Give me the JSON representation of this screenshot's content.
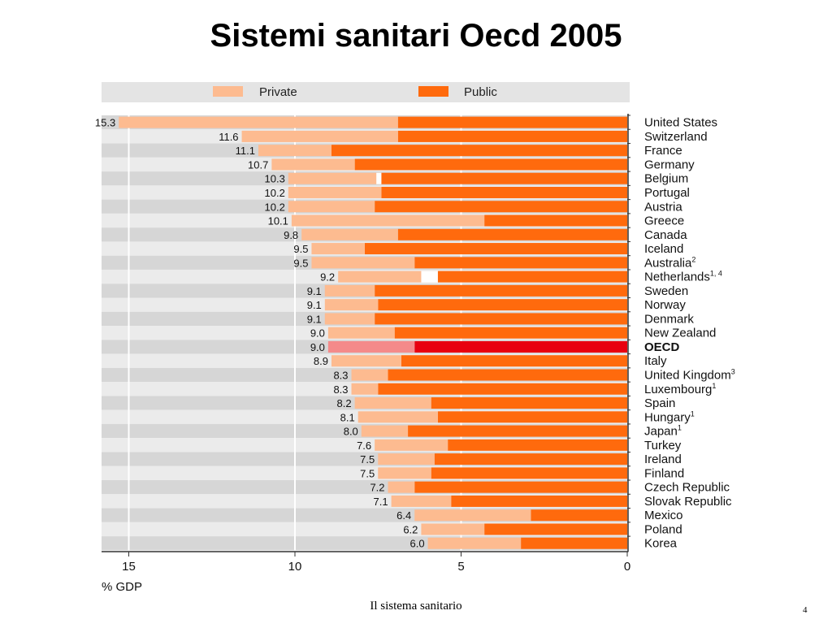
{
  "slide": {
    "title": "Sistemi sanitari Oecd 2005",
    "footer": "Il sistema sanitario",
    "page_number": "4"
  },
  "colors": {
    "private": "#fdbb90",
    "public": "#ff6a0d",
    "oecd_private": "#f48a8a",
    "oecd_public": "#e8000f",
    "band_light": "#ebebeb",
    "band_dark": "#d6d6d6"
  },
  "chart_data": {
    "type": "bar",
    "orientation": "horizontal-stacked",
    "legend": [
      "Private",
      "Public"
    ],
    "legend_position": "top",
    "xlabel": "% GDP",
    "xlim": [
      15,
      0
    ],
    "xticks": [
      "15",
      "10",
      "5",
      "0"
    ],
    "grid": true,
    "categories": [
      "United States",
      "Switzerland",
      "France",
      "Germany",
      "Belgium",
      "Portugal",
      "Austria",
      "Greece",
      "Canada",
      "Iceland",
      "Australia",
      "Netherlands",
      "Sweden",
      "Norway",
      "Denmark",
      "New Zealand",
      "OECD",
      "Italy",
      "United Kingdom",
      "Luxembourg",
      "Spain",
      "Hungary",
      "Japan",
      "Turkey",
      "Ireland",
      "Finland",
      "Czech Republic",
      "Slovak Republic",
      "Mexico",
      "Poland",
      "Korea"
    ],
    "category_superscripts": [
      "",
      "",
      "",
      "",
      "",
      "",
      "",
      "",
      "",
      "",
      "2",
      "1, 4",
      "",
      "",
      "",
      "",
      "",
      "",
      "3",
      "1",
      "",
      "1",
      "1",
      "",
      "",
      "",
      "",
      "",
      "",
      "",
      ""
    ],
    "totals": [
      "15.3",
      "11.6",
      "11.1",
      "10.7",
      "10.3",
      "10.2",
      "10.2",
      "10.1",
      "9.8",
      "9.5",
      "9.5",
      "9.2",
      "9.1",
      "9.1",
      "9.1",
      "9.0",
      "9.0",
      "8.9",
      "8.3",
      "8.3",
      "8.2",
      "8.1",
      "8.0",
      "7.6",
      "7.5",
      "7.5",
      "7.2",
      "7.1",
      "6.4",
      "6.2",
      "6.0"
    ],
    "highlight": "OECD",
    "series": [
      {
        "name": "Public",
        "values": [
          6.9,
          6.9,
          8.9,
          8.2,
          7.4,
          7.4,
          7.6,
          4.3,
          6.9,
          7.9,
          6.4,
          5.7,
          7.6,
          7.5,
          7.6,
          7.0,
          6.4,
          6.8,
          7.2,
          7.5,
          5.9,
          5.7,
          6.6,
          5.4,
          5.8,
          5.9,
          6.4,
          5.3,
          2.9,
          4.3,
          3.2
        ]
      },
      {
        "name": "Private",
        "values": [
          8.4,
          4.7,
          2.2,
          2.5,
          2.8,
          2.8,
          2.6,
          5.8,
          2.9,
          1.6,
          3.1,
          3.0,
          1.5,
          1.6,
          1.5,
          2.0,
          2.6,
          2.1,
          1.1,
          0.8,
          2.3,
          2.4,
          1.4,
          2.2,
          1.7,
          1.6,
          0.8,
          1.8,
          3.5,
          1.9,
          2.8
        ]
      }
    ],
    "gaps": [
      {
        "category": "Belgium",
        "from": 7.4,
        "to": 7.55
      },
      {
        "category": "Netherlands",
        "from": 5.7,
        "to": 6.2
      }
    ]
  }
}
